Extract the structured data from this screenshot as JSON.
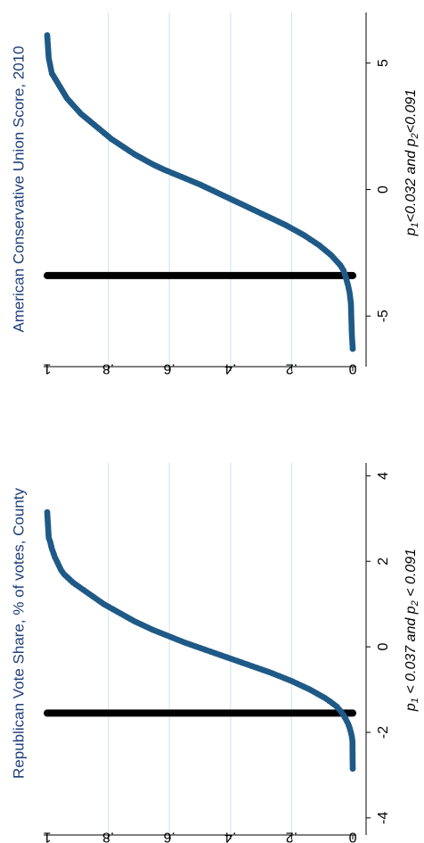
{
  "colors": {
    "point": "#1f5a87",
    "threshold": "#000000",
    "grid": "#d6e8ee",
    "title": "#1f3f7a"
  },
  "chart_data": [
    {
      "type": "scatter",
      "title": "American Conservative Union Score, 2010",
      "annotation": {
        "parts": [
          {
            "text": "p",
            "style": "normal"
          },
          {
            "text": "1",
            "style": "sub"
          },
          {
            "text": "<0.032 and p",
            "style": "normal"
          },
          {
            "text": "2",
            "style": "sub"
          },
          {
            "text": "<0.091",
            "style": "normal"
          }
        ]
      },
      "x_axis": {
        "ticks": [
          -5,
          0,
          5
        ],
        "tick_labels": [
          "-5",
          "0",
          "5"
        ],
        "range": [
          -7,
          7
        ]
      },
      "y_axis": {
        "ticks": [
          0,
          0.2,
          0.4,
          0.6,
          0.8,
          1
        ],
        "tick_labels": [
          "0",
          ".2",
          ".4",
          ".6",
          ".8",
          "1"
        ],
        "range": [
          0,
          1
        ]
      },
      "grid": true,
      "threshold_x": -3.4,
      "points": [
        {
          "x": 6.1,
          "y": 1.0
        },
        {
          "x": 5.2,
          "y": 0.995
        },
        {
          "x": 4.9,
          "y": 0.99
        },
        {
          "x": 4.6,
          "y": 0.985
        },
        {
          "x": 4.4,
          "y": 0.975
        },
        {
          "x": 4.2,
          "y": 0.965
        },
        {
          "x": 4.0,
          "y": 0.955
        },
        {
          "x": 3.8,
          "y": 0.945
        },
        {
          "x": 3.6,
          "y": 0.935
        },
        {
          "x": 3.4,
          "y": 0.92
        },
        {
          "x": 3.2,
          "y": 0.905
        },
        {
          "x": 3.0,
          "y": 0.89
        },
        {
          "x": 2.8,
          "y": 0.87
        },
        {
          "x": 2.6,
          "y": 0.85
        },
        {
          "x": 2.4,
          "y": 0.83
        },
        {
          "x": 2.2,
          "y": 0.81
        },
        {
          "x": 2.0,
          "y": 0.79
        },
        {
          "x": 1.8,
          "y": 0.765
        },
        {
          "x": 1.6,
          "y": 0.74
        },
        {
          "x": 1.4,
          "y": 0.715
        },
        {
          "x": 1.2,
          "y": 0.685
        },
        {
          "x": 1.0,
          "y": 0.655
        },
        {
          "x": 0.8,
          "y": 0.62
        },
        {
          "x": 0.6,
          "y": 0.58
        },
        {
          "x": 0.4,
          "y": 0.54
        },
        {
          "x": 0.2,
          "y": 0.5
        },
        {
          "x": 0.0,
          "y": 0.465
        },
        {
          "x": -0.2,
          "y": 0.43
        },
        {
          "x": -0.4,
          "y": 0.395
        },
        {
          "x": -0.6,
          "y": 0.36
        },
        {
          "x": -0.8,
          "y": 0.325
        },
        {
          "x": -1.0,
          "y": 0.29
        },
        {
          "x": -1.2,
          "y": 0.255
        },
        {
          "x": -1.4,
          "y": 0.22
        },
        {
          "x": -1.6,
          "y": 0.19
        },
        {
          "x": -1.8,
          "y": 0.16
        },
        {
          "x": -2.0,
          "y": 0.135
        },
        {
          "x": -2.2,
          "y": 0.11
        },
        {
          "x": -2.4,
          "y": 0.09
        },
        {
          "x": -2.6,
          "y": 0.07
        },
        {
          "x": -2.8,
          "y": 0.055
        },
        {
          "x": -3.0,
          "y": 0.04
        },
        {
          "x": -3.2,
          "y": 0.03
        },
        {
          "x": -3.5,
          "y": 0.022
        },
        {
          "x": -3.8,
          "y": 0.015
        },
        {
          "x": -4.1,
          "y": 0.01
        },
        {
          "x": -4.5,
          "y": 0.006
        },
        {
          "x": -5.7,
          "y": 0.003
        },
        {
          "x": -6.3,
          "y": 0.0
        }
      ]
    },
    {
      "type": "scatter",
      "title": "Republican Vote Share, % of votes, County",
      "annotation": {
        "parts": [
          {
            "text": "p",
            "style": "normal"
          },
          {
            "text": "1",
            "style": "sub"
          },
          {
            "text": " < 0.037 and p",
            "style": "normal"
          },
          {
            "text": "2",
            "style": "sub"
          },
          {
            "text": " < 0.091",
            "style": "normal"
          }
        ]
      },
      "x_axis": {
        "ticks": [
          -4,
          -2,
          0,
          2,
          4
        ],
        "tick_labels": [
          "-4",
          "-2",
          "0",
          "2",
          "4"
        ],
        "range": [
          -4.4,
          4.3
        ]
      },
      "y_axis": {
        "ticks": [
          0,
          0.2,
          0.4,
          0.6,
          0.8,
          1
        ],
        "tick_labels": [
          "0",
          ".2",
          ".4",
          ".6",
          ".8",
          "1"
        ],
        "range": [
          0,
          1
        ]
      },
      "grid": true,
      "threshold_x": -1.55,
      "points": [
        {
          "x": 3.15,
          "y": 1.0
        },
        {
          "x": 2.55,
          "y": 0.995
        },
        {
          "x": 2.45,
          "y": 0.99
        },
        {
          "x": 2.3,
          "y": 0.985
        },
        {
          "x": 2.1,
          "y": 0.975
        },
        {
          "x": 1.95,
          "y": 0.965
        },
        {
          "x": 1.8,
          "y": 0.955
        },
        {
          "x": 1.7,
          "y": 0.945
        },
        {
          "x": 1.6,
          "y": 0.93
        },
        {
          "x": 1.5,
          "y": 0.915
        },
        {
          "x": 1.4,
          "y": 0.895
        },
        {
          "x": 1.3,
          "y": 0.875
        },
        {
          "x": 1.2,
          "y": 0.855
        },
        {
          "x": 1.1,
          "y": 0.835
        },
        {
          "x": 1.0,
          "y": 0.815
        },
        {
          "x": 0.9,
          "y": 0.79
        },
        {
          "x": 0.8,
          "y": 0.765
        },
        {
          "x": 0.7,
          "y": 0.74
        },
        {
          "x": 0.6,
          "y": 0.715
        },
        {
          "x": 0.5,
          "y": 0.685
        },
        {
          "x": 0.4,
          "y": 0.655
        },
        {
          "x": 0.3,
          "y": 0.62
        },
        {
          "x": 0.2,
          "y": 0.585
        },
        {
          "x": 0.1,
          "y": 0.55
        },
        {
          "x": 0.0,
          "y": 0.51
        },
        {
          "x": -0.1,
          "y": 0.47
        },
        {
          "x": -0.2,
          "y": 0.43
        },
        {
          "x": -0.3,
          "y": 0.39
        },
        {
          "x": -0.4,
          "y": 0.35
        },
        {
          "x": -0.5,
          "y": 0.31
        },
        {
          "x": -0.6,
          "y": 0.27
        },
        {
          "x": -0.7,
          "y": 0.235
        },
        {
          "x": -0.8,
          "y": 0.2
        },
        {
          "x": -0.9,
          "y": 0.17
        },
        {
          "x": -1.0,
          "y": 0.14
        },
        {
          "x": -1.1,
          "y": 0.115
        },
        {
          "x": -1.2,
          "y": 0.09
        },
        {
          "x": -1.3,
          "y": 0.07
        },
        {
          "x": -1.4,
          "y": 0.052
        },
        {
          "x": -1.5,
          "y": 0.04
        },
        {
          "x": -1.6,
          "y": 0.03
        },
        {
          "x": -1.7,
          "y": 0.022
        },
        {
          "x": -1.8,
          "y": 0.015
        },
        {
          "x": -1.9,
          "y": 0.01
        },
        {
          "x": -2.0,
          "y": 0.006
        },
        {
          "x": -2.1,
          "y": 0.003
        },
        {
          "x": -2.2,
          "y": 0.001
        },
        {
          "x": -2.85,
          "y": 0.0
        }
      ]
    }
  ]
}
